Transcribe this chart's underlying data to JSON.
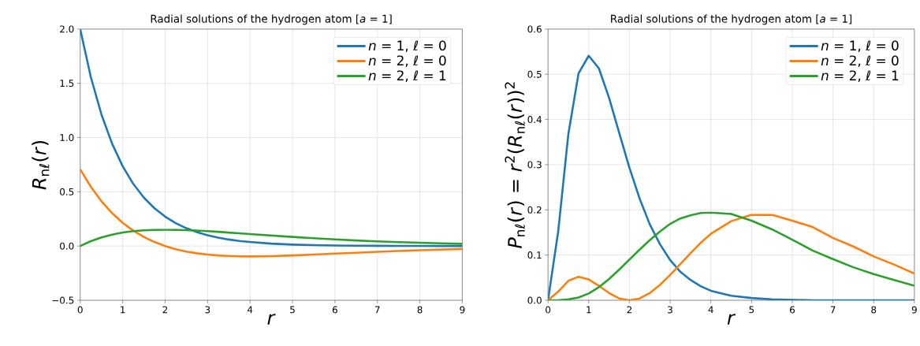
{
  "chart_data": [
    {
      "type": "line",
      "title": "Radial solutions of the hydrogen atom [*a* = 1]",
      "xlabel": "*r*",
      "ylabel": "*R*$_{nℓ}$(*r*)",
      "x": [
        0,
        0.25,
        0.5,
        0.75,
        1,
        1.25,
        1.5,
        1.75,
        2,
        2.25,
        2.5,
        2.75,
        3,
        3.25,
        3.5,
        3.75,
        4,
        4.5,
        5,
        5.5,
        6,
        6.5,
        7,
        7.5,
        8,
        8.5,
        9
      ],
      "series": [
        {
          "name": "*n* = 1, *ℓ* = 0",
          "color": "#1f77b4",
          "values": [
            2,
            1.558,
            1.213,
            0.945,
            0.736,
            0.573,
            0.446,
            0.348,
            0.271,
            0.211,
            0.164,
            0.128,
            0.1,
            0.078,
            0.06,
            0.047,
            0.037,
            0.022,
            0.013,
            0.008,
            0.005,
            0.003,
            0.002,
            0.001,
            0.001,
            0,
            0
          ]
        },
        {
          "name": "*n* = 2, *ℓ* = 0",
          "color": "#ff7f0e",
          "values": [
            0.707,
            0.546,
            0.413,
            0.304,
            0.214,
            0.142,
            0.084,
            0.037,
            0,
            -0.029,
            -0.051,
            -0.067,
            -0.079,
            -0.087,
            -0.092,
            -0.095,
            -0.096,
            -0.093,
            -0.087,
            -0.079,
            -0.07,
            -0.062,
            -0.053,
            -0.046,
            -0.039,
            -0.033,
            -0.027
          ]
        },
        {
          "name": "*n* = 2, *ℓ* = 1",
          "color": "#2ca02c",
          "values": [
            0,
            0.045,
            0.079,
            0.105,
            0.124,
            0.137,
            0.145,
            0.149,
            0.15,
            0.149,
            0.146,
            0.142,
            0.137,
            0.131,
            0.124,
            0.117,
            0.11,
            0.097,
            0.084,
            0.072,
            0.061,
            0.051,
            0.043,
            0.036,
            0.03,
            0.025,
            0.02
          ]
        }
      ],
      "xlim": [
        0,
        9
      ],
      "xticks": [
        0,
        1,
        2,
        3,
        4,
        5,
        6,
        7,
        8,
        9
      ],
      "ylim": [
        -0.5,
        2.0
      ],
      "yticks": [
        {
          "value": -0.5,
          "label": "−0.5"
        },
        {
          "value": 0,
          "label": "0.0"
        },
        {
          "value": 0.5,
          "label": "0.5"
        },
        {
          "value": 1,
          "label": "1.0"
        },
        {
          "value": 1.5,
          "label": "1.5"
        },
        {
          "value": 2,
          "label": "2.0"
        }
      ],
      "grid": true,
      "legend": "top right",
      "marker": "none",
      "line_style": "solid"
    },
    {
      "type": "line",
      "title": "Radial solutions of the hydrogen atom [*a* = 1]",
      "xlabel": "*r*",
      "ylabel": "*P*$_{nℓ}$(*r*) = *r*$^{2}$(*R*$_{nℓ}$(*r*))$^{2}$",
      "x": [
        0,
        0.25,
        0.5,
        0.75,
        1,
        1.25,
        1.5,
        1.75,
        2,
        2.25,
        2.5,
        2.75,
        3,
        3.25,
        3.5,
        3.75,
        4,
        4.5,
        5,
        5.5,
        6,
        6.5,
        7,
        7.5,
        8,
        8.5,
        9
      ],
      "series": [
        {
          "name": "*n* = 1, *ℓ* = 0",
          "color": "#1f77b4",
          "values": [
            0,
            0.152,
            0.368,
            0.502,
            0.541,
            0.513,
            0.448,
            0.37,
            0.293,
            0.225,
            0.168,
            0.124,
            0.089,
            0.063,
            0.045,
            0.031,
            0.021,
            0.01,
            0.005,
            0.002,
            0.001,
            0,
            0,
            0,
            0,
            0,
            0
          ]
        },
        {
          "name": "*n* = 2, *ℓ* = 0",
          "color": "#ff7f0e",
          "values": [
            0,
            0.019,
            0.043,
            0.052,
            0.046,
            0.032,
            0.016,
            0.004,
            0,
            0.004,
            0.016,
            0.034,
            0.056,
            0.08,
            0.104,
            0.127,
            0.147,
            0.175,
            0.189,
            0.189,
            0.176,
            0.162,
            0.138,
            0.119,
            0.097,
            0.079,
            0.059
          ]
        },
        {
          "name": "*n* = 2, *ℓ* = 1",
          "color": "#2ca02c",
          "values": [
            0,
            0,
            0.002,
            0.006,
            0.015,
            0.029,
            0.047,
            0.068,
            0.09,
            0.112,
            0.133,
            0.152,
            0.169,
            0.181,
            0.188,
            0.193,
            0.194,
            0.191,
            0.176,
            0.157,
            0.134,
            0.11,
            0.091,
            0.073,
            0.058,
            0.045,
            0.032
          ]
        }
      ],
      "xlim": [
        0,
        9
      ],
      "xticks": [
        0,
        1,
        2,
        3,
        4,
        5,
        6,
        7,
        8,
        9
      ],
      "ylim": [
        0,
        0.6
      ],
      "yticks": [
        {
          "value": 0,
          "label": "0.0"
        },
        {
          "value": 0.1,
          "label": "0.1"
        },
        {
          "value": 0.2,
          "label": "0.2"
        },
        {
          "value": 0.3,
          "label": "0.3"
        },
        {
          "value": 0.4,
          "label": "0.4"
        },
        {
          "value": 0.5,
          "label": "0.5"
        },
        {
          "value": 0.6,
          "label": "0.6"
        }
      ],
      "grid": true,
      "legend": "top right",
      "marker": "none",
      "line_style": "solid"
    }
  ]
}
